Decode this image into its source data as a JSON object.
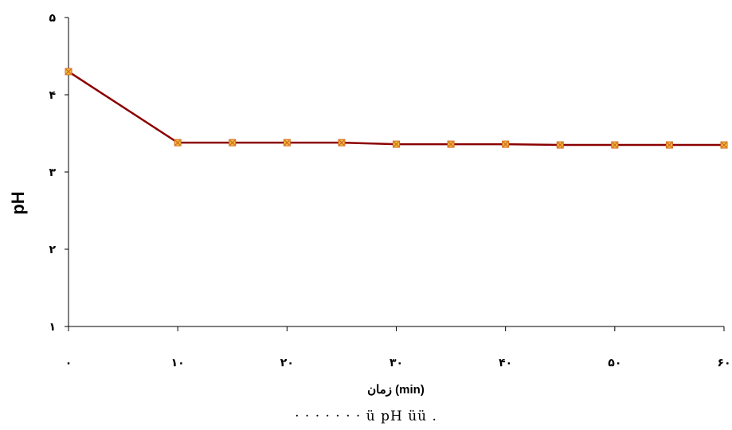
{
  "chart_data": {
    "type": "line",
    "x": [
      0,
      10,
      15,
      20,
      25,
      30,
      35,
      40,
      45,
      50,
      55,
      60
    ],
    "x_tick_values": [
      0,
      10,
      20,
      30,
      40,
      50,
      60
    ],
    "x_tick_labels": [
      "۰",
      "۱۰",
      "۲۰",
      "۳۰",
      "۴۰",
      "۵۰",
      "۶۰"
    ],
    "y_tick_values": [
      1,
      2,
      3,
      4,
      5
    ],
    "y_tick_labels": [
      "۱",
      "۲",
      "۳",
      "۴",
      "۵"
    ],
    "xlim": [
      0,
      60
    ],
    "ylim": [
      1,
      5
    ],
    "xlabel": "زمان (min)",
    "ylabel": "pH",
    "series": [
      {
        "values": [
          4.3,
          3.38,
          3.38,
          3.38,
          3.38,
          3.36,
          3.36,
          3.36,
          3.35,
          3.35,
          3.35,
          3.35
        ]
      }
    ],
    "line_color": "#8b0000",
    "marker_color": "#f0c040",
    "marker_edge_color": "#d2691e",
    "grid": false
  },
  "caption": "·   ·   ·   ·   ·   ·   ·   ü   pH   üü  ."
}
